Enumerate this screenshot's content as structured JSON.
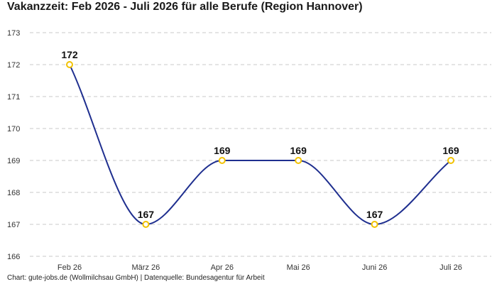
{
  "title": "Vakanzzeit: Feb 2026 - Juli 2026 für alle Berufe (Region Hannover)",
  "footer": "Chart: gute-jobs.de (Wollmilchsau GmbH) | Datenquelle: Bundesagentur für Arbeit",
  "colors": {
    "line": "#1f2f8f",
    "marker_edge": "#f2c200",
    "marker_fill": "#ffffff",
    "grid": "#c8c8c8"
  },
  "chart_data": {
    "type": "line",
    "title": "Vakanzzeit: Feb 2026 - Juli 2026 für alle Berufe (Region Hannover)",
    "xlabel": "",
    "ylabel": "",
    "categories": [
      "Feb 26",
      "März 26",
      "Apr 26",
      "Mai 26",
      "Juni 26",
      "Juli 26"
    ],
    "series": [
      {
        "values": [
          172,
          167,
          169,
          169,
          167,
          169
        ]
      }
    ],
    "ylim": [
      166,
      173
    ],
    "yticks": [
      166,
      167,
      168,
      169,
      170,
      171,
      172,
      173
    ],
    "grid": true,
    "grid_style": "dashed horizontal",
    "data_labels": true
  }
}
